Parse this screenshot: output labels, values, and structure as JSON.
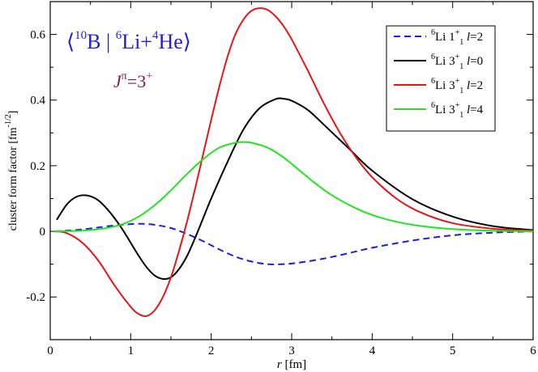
{
  "chart_data": {
    "type": "line",
    "title_parts": {
      "open": "⟨",
      "sup1": "10",
      "b": "B | ",
      "sup2": "6",
      "li": "Li+",
      "sup3": "4",
      "he": "He⟩"
    },
    "subtitle_parts": {
      "j": "J",
      "pi": "π",
      "eq": "=3",
      "plus": "+"
    },
    "xlabel": {
      "var": "r",
      "unit": " [fm]"
    },
    "ylabel": {
      "text": "cluster form factor [fm",
      "sup": "-1/2",
      "close": "]"
    },
    "xlim": [
      0,
      6
    ],
    "ylim": [
      -0.33,
      0.7
    ],
    "xticks": [
      0,
      1,
      2,
      3,
      4,
      5,
      6
    ],
    "yticks": [
      -0.2,
      0,
      0.2,
      0.4,
      0.6
    ],
    "xtick_labels": [
      "0",
      "1",
      "2",
      "3",
      "4",
      "5",
      "6"
    ],
    "ytick_labels": [
      "-0.2",
      "0",
      "0.2",
      "0.4",
      "0.6"
    ],
    "grid": false,
    "legend_position": "top-right",
    "series": [
      {
        "name": "6Li 1+1 l=2",
        "legend": {
          "sup_a": "6",
          "base": "Li 1",
          "sup_b": "+",
          "sub": "1",
          "lvar": "l",
          "lval": "=2"
        },
        "color": "#1f1fd6",
        "dash": "8,5",
        "x": [
          0.05,
          0.2,
          0.4,
          0.6,
          0.8,
          1.0,
          1.15,
          1.3,
          1.5,
          1.7,
          1.9,
          2.1,
          2.3,
          2.5,
          2.7,
          2.9,
          3.1,
          3.4,
          3.7,
          4.0,
          4.5,
          5.0,
          5.5,
          6.0
        ],
        "y": [
          0.0,
          0.002,
          0.006,
          0.012,
          0.018,
          0.022,
          0.023,
          0.02,
          0.01,
          -0.008,
          -0.03,
          -0.055,
          -0.077,
          -0.092,
          -0.1,
          -0.1,
          -0.095,
          -0.083,
          -0.067,
          -0.05,
          -0.028,
          -0.012,
          -0.004,
          0.0
        ]
      },
      {
        "name": "6Li 3+1 l=0",
        "legend": {
          "sup_a": "6",
          "base": "Li 3",
          "sup_b": "+",
          "sub": "1",
          "lvar": "l",
          "lval": "=0"
        },
        "color": "#000000",
        "dash": "",
        "x": [
          0.08,
          0.2,
          0.3,
          0.4,
          0.5,
          0.6,
          0.7,
          0.8,
          0.9,
          1.0,
          1.1,
          1.2,
          1.3,
          1.4,
          1.5,
          1.6,
          1.7,
          1.8,
          1.9,
          2.0,
          2.2,
          2.4,
          2.6,
          2.8,
          2.9,
          3.0,
          3.2,
          3.4,
          3.7,
          4.0,
          4.5,
          5.0,
          5.5,
          6.0
        ],
        "y": [
          0.035,
          0.08,
          0.102,
          0.11,
          0.107,
          0.094,
          0.07,
          0.04,
          0.005,
          -0.035,
          -0.075,
          -0.11,
          -0.135,
          -0.145,
          -0.14,
          -0.115,
          -0.075,
          -0.02,
          0.04,
          0.1,
          0.21,
          0.31,
          0.375,
          0.403,
          0.404,
          0.398,
          0.37,
          0.325,
          0.255,
          0.185,
          0.098,
          0.045,
          0.016,
          0.004
        ]
      },
      {
        "name": "6Li 3+1 l=2",
        "legend": {
          "sup_a": "6",
          "base": "Li 3",
          "sup_b": "+",
          "sub": "1",
          "lvar": "l",
          "lval": "=2"
        },
        "color": "#e8141a",
        "dash": "",
        "x": [
          0.05,
          0.2,
          0.4,
          0.6,
          0.8,
          1.0,
          1.1,
          1.2,
          1.3,
          1.4,
          1.5,
          1.6,
          1.7,
          1.8,
          1.9,
          2.0,
          2.1,
          2.2,
          2.3,
          2.4,
          2.5,
          2.6,
          2.7,
          2.8,
          2.9,
          3.0,
          3.2,
          3.4,
          3.6,
          3.8,
          4.0,
          4.3,
          4.6,
          5.0,
          5.5,
          6.0
        ],
        "y": [
          0.0,
          -0.005,
          -0.035,
          -0.09,
          -0.165,
          -0.23,
          -0.252,
          -0.258,
          -0.24,
          -0.2,
          -0.14,
          -0.06,
          0.03,
          0.13,
          0.235,
          0.34,
          0.44,
          0.53,
          0.6,
          0.645,
          0.672,
          0.68,
          0.675,
          0.655,
          0.625,
          0.585,
          0.49,
          0.39,
          0.3,
          0.225,
          0.165,
          0.1,
          0.058,
          0.025,
          0.008,
          0.002
        ]
      },
      {
        "name": "6Li 3+1 l=4",
        "legend": {
          "sup_a": "6",
          "base": "Li 3",
          "sup_b": "+",
          "sub": "1",
          "lvar": "l",
          "lval": "=4"
        },
        "color": "#22e422",
        "dash": "",
        "x": [
          0.05,
          0.3,
          0.5,
          0.7,
          0.9,
          1.1,
          1.3,
          1.5,
          1.7,
          1.9,
          2.1,
          2.3,
          2.4,
          2.5,
          2.7,
          2.9,
          3.1,
          3.3,
          3.5,
          3.8,
          4.1,
          4.5,
          5.0,
          5.5,
          6.0
        ],
        "y": [
          0.0,
          0.001,
          0.004,
          0.01,
          0.022,
          0.045,
          0.08,
          0.125,
          0.175,
          0.22,
          0.255,
          0.27,
          0.272,
          0.27,
          0.255,
          0.225,
          0.185,
          0.145,
          0.11,
          0.07,
          0.042,
          0.02,
          0.007,
          0.002,
          0.0
        ]
      }
    ]
  }
}
